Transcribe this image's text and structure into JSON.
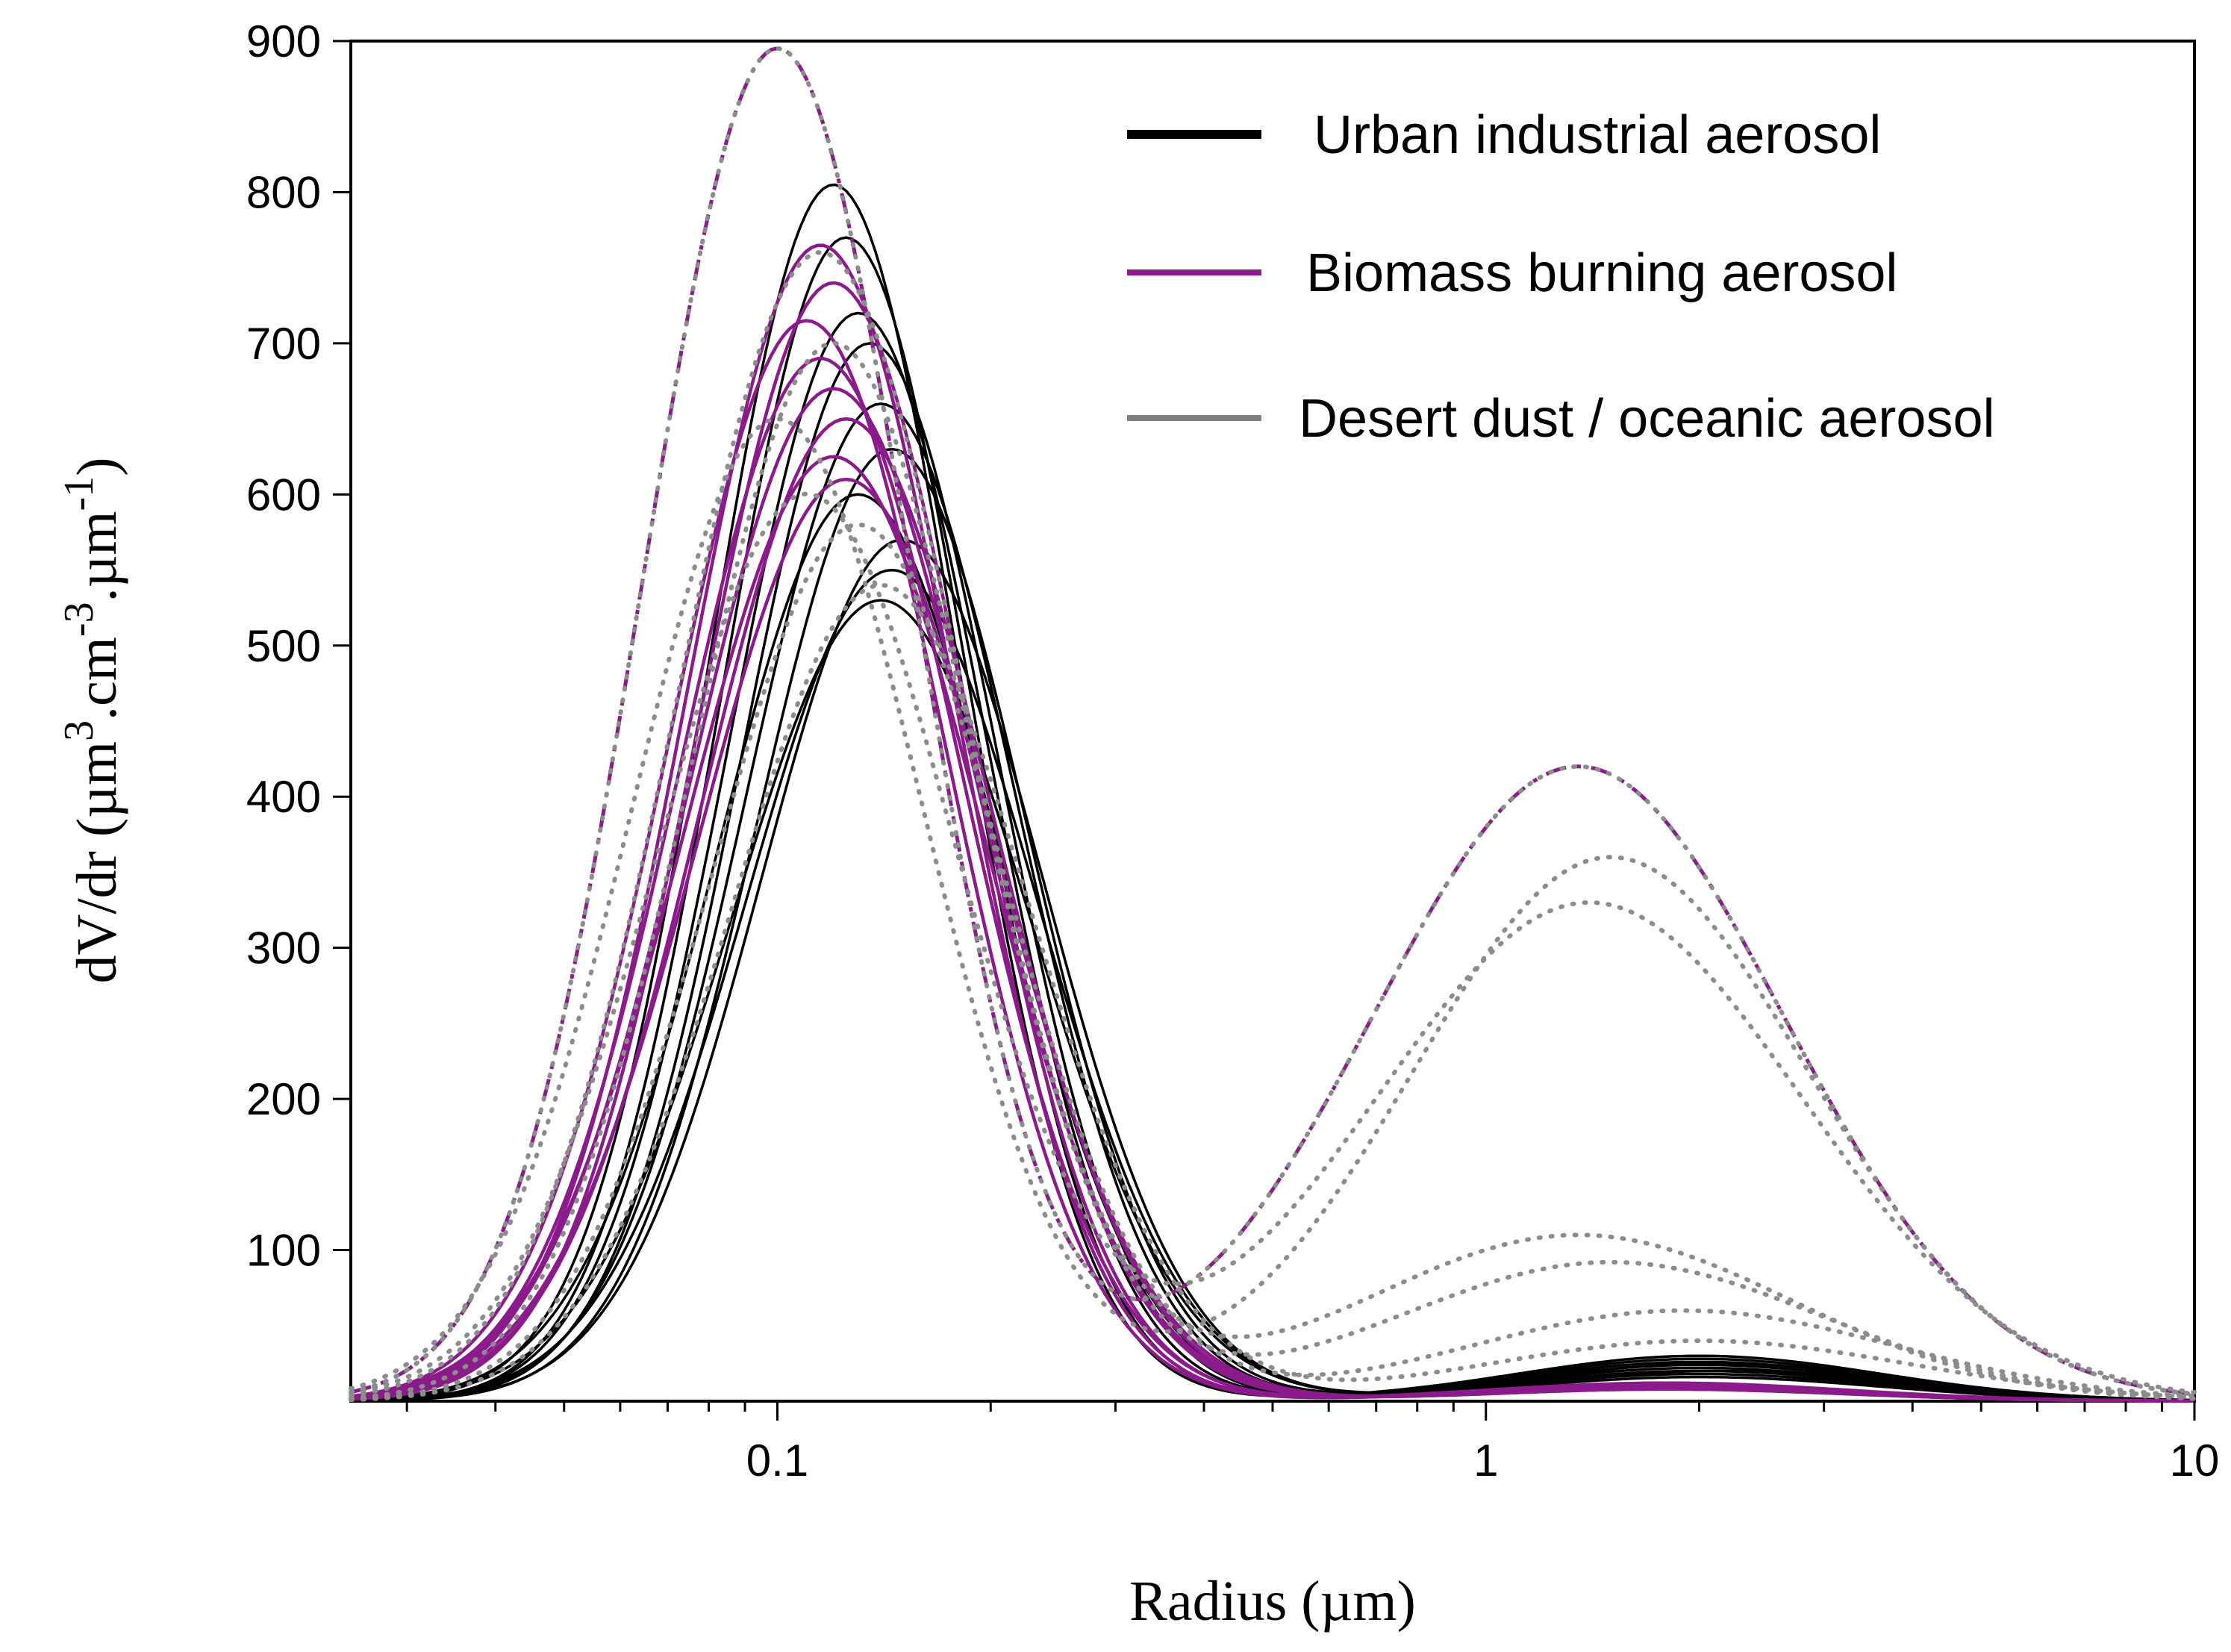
{
  "chart_data": {
    "type": "line",
    "xscale": "log",
    "xlim": [
      0.025,
      10
    ],
    "ylim": [
      0,
      900
    ],
    "xlabel": "Radius (µm)",
    "ylabel_parts": {
      "prefix": "dV/dr (µm",
      "sup1": "3",
      "mid": ".cm",
      "sup2": "-3",
      "mid2": ".µm",
      "sup3": "-1",
      "suffix": ")"
    },
    "x_ticks": [
      {
        "value": 0.1,
        "label": "0.1"
      },
      {
        "value": 1,
        "label": "1"
      },
      {
        "value": 10,
        "label": "10"
      }
    ],
    "y_ticks": [
      {
        "value": 100,
        "label": "100"
      },
      {
        "value": 200,
        "label": "200"
      },
      {
        "value": 300,
        "label": "300"
      },
      {
        "value": 400,
        "label": "400"
      },
      {
        "value": 500,
        "label": "500"
      },
      {
        "value": 600,
        "label": "600"
      },
      {
        "value": 700,
        "label": "700"
      },
      {
        "value": 800,
        "label": "800"
      },
      {
        "value": 900,
        "label": "900"
      }
    ],
    "legend": [
      {
        "label": "Urban industrial aerosol",
        "color": "#000000"
      },
      {
        "label": "Biomass burning aerosol",
        "color": "#8b1a8b"
      },
      {
        "label": "Desert dust / oceanic aerosol",
        "color": "#808080"
      }
    ],
    "model": "bimodal log-normal: fine + coarse modes; each mode = amplitude, median radius (µm), geometric sigma",
    "series": [
      {
        "group": "urban",
        "fine": [
          805,
          0.12,
          1.5
        ],
        "coarse": [
          30,
          2.0,
          1.8
        ]
      },
      {
        "group": "urban",
        "fine": [
          770,
          0.125,
          1.5
        ],
        "coarse": [
          28,
          2.0,
          1.8
        ]
      },
      {
        "group": "urban",
        "fine": [
          720,
          0.13,
          1.52
        ],
        "coarse": [
          26,
          2.0,
          1.8
        ]
      },
      {
        "group": "urban",
        "fine": [
          700,
          0.135,
          1.52
        ],
        "coarse": [
          25,
          2.1,
          1.8
        ]
      },
      {
        "group": "urban",
        "fine": [
          660,
          0.14,
          1.55
        ],
        "coarse": [
          24,
          2.0,
          1.8
        ]
      },
      {
        "group": "urban",
        "fine": [
          630,
          0.145,
          1.55
        ],
        "coarse": [
          22,
          2.0,
          1.8
        ]
      },
      {
        "group": "urban",
        "fine": [
          600,
          0.13,
          1.58
        ],
        "coarse": [
          20,
          2.0,
          1.8
        ]
      },
      {
        "group": "urban",
        "fine": [
          570,
          0.15,
          1.58
        ],
        "coarse": [
          20,
          2.1,
          1.8
        ]
      },
      {
        "group": "urban",
        "fine": [
          550,
          0.145,
          1.6
        ],
        "coarse": [
          18,
          2.0,
          1.8
        ]
      },
      {
        "group": "urban",
        "fine": [
          530,
          0.14,
          1.62
        ],
        "coarse": [
          16,
          2.0,
          1.8
        ]
      },
      {
        "group": "biomass",
        "fine": [
          765,
          0.115,
          1.55
        ],
        "coarse": [
          12,
          1.8,
          1.8
        ]
      },
      {
        "group": "biomass",
        "fine": [
          740,
          0.12,
          1.55
        ],
        "coarse": [
          11,
          1.8,
          1.8
        ]
      },
      {
        "group": "biomass",
        "fine": [
          715,
          0.11,
          1.57
        ],
        "coarse": [
          10,
          1.8,
          1.8
        ]
      },
      {
        "group": "biomass",
        "fine": [
          690,
          0.115,
          1.58
        ],
        "coarse": [
          10,
          1.8,
          1.8
        ]
      },
      {
        "group": "biomass",
        "fine": [
          670,
          0.12,
          1.6
        ],
        "coarse": [
          9,
          1.8,
          1.8
        ]
      },
      {
        "group": "biomass",
        "fine": [
          650,
          0.125,
          1.6
        ],
        "coarse": [
          9,
          1.8,
          1.8
        ]
      },
      {
        "group": "biomass",
        "fine": [
          625,
          0.12,
          1.62
        ],
        "coarse": [
          8,
          1.8,
          1.8
        ]
      },
      {
        "group": "biomass",
        "fine": [
          610,
          0.125,
          1.62
        ],
        "coarse": [
          8,
          1.8,
          1.8
        ]
      },
      {
        "group": "dust",
        "fine": [
          895,
          0.1,
          1.55
        ],
        "coarse": [
          420,
          1.35,
          1.95
        ]
      },
      {
        "group": "dust",
        "fine": [
          650,
          0.1,
          1.6
        ],
        "coarse": [
          360,
          1.5,
          1.9
        ]
      },
      {
        "group": "dust",
        "fine": [
          600,
          0.11,
          1.62
        ],
        "coarse": [
          330,
          1.4,
          2.0
        ]
      },
      {
        "group": "dust",
        "fine": [
          760,
          0.115,
          1.6
        ],
        "coarse": [
          110,
          1.35,
          2.0
        ]
      },
      {
        "group": "dust",
        "fine": [
          700,
          0.12,
          1.58
        ],
        "coarse": [
          92,
          1.5,
          2.0
        ]
      },
      {
        "group": "dust",
        "fine": [
          580,
          0.13,
          1.6
        ],
        "coarse": [
          60,
          1.9,
          2.0
        ]
      },
      {
        "group": "dust",
        "fine": [
          540,
          0.14,
          1.62
        ],
        "coarse": [
          40,
          2.0,
          2.0
        ]
      }
    ]
  }
}
